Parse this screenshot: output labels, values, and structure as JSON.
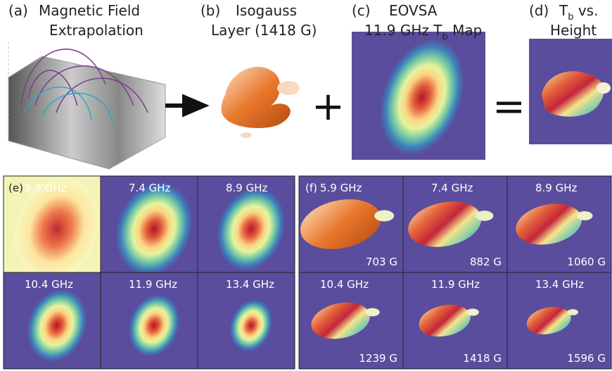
{
  "top_panels": [
    {
      "label": "(a)",
      "title": "Magnetic Field",
      "title_line2": "Extrapolation"
    },
    {
      "label": "(b)",
      "title": "Isogauss",
      "title_line2": "Layer (1418 G)"
    },
    {
      "label": "(c)",
      "title": "EOVSA",
      "title_line2": {
        "text": "11.9 GHz T",
        "sub": "b",
        "tail": " Map"
      }
    },
    {
      "label": "(d)",
      "title": {
        "text": "T",
        "sub": "b",
        "tail": " vs."
      },
      "title_line2": "Height"
    }
  ],
  "operators": [
    "+",
    "="
  ],
  "panel_e": {
    "label": "(e)",
    "tiles": [
      "5.9 GHz",
      "7.4 GHz",
      "8.9 GHz",
      "10.4 GHz",
      "11.9 GHz",
      "13.4 GHz"
    ]
  },
  "panel_f": {
    "label": "(f)",
    "tiles": [
      {
        "freq": "5.9 GHz",
        "field": "703 G"
      },
      {
        "freq": "7.4 GHz",
        "field": "882 G"
      },
      {
        "freq": "8.9 GHz",
        "field": "1060 G"
      },
      {
        "freq": "10.4 GHz",
        "field": "1239 G"
      },
      {
        "freq": "11.9 GHz",
        "field": "1418 G"
      },
      {
        "freq": "13.4 GHz",
        "field": "1596 G"
      }
    ]
  }
}
